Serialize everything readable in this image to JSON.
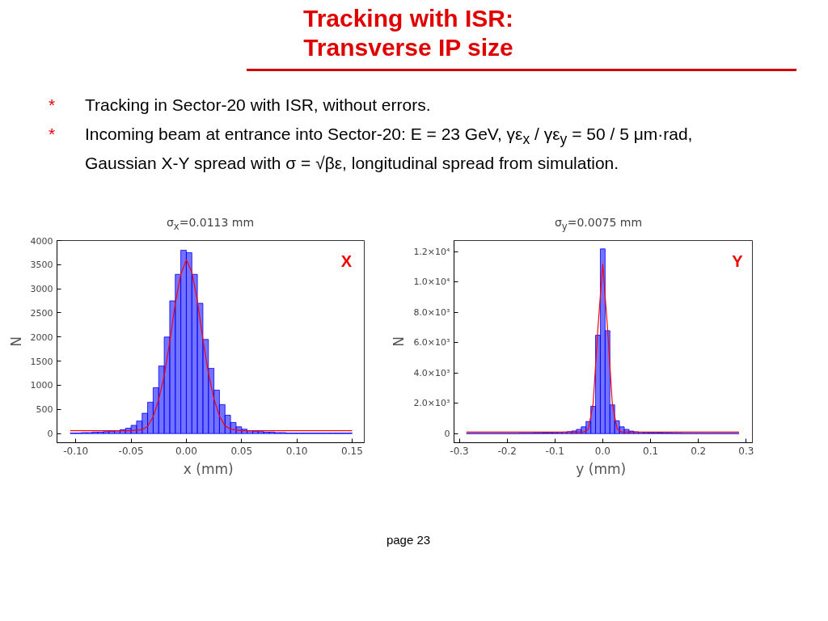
{
  "chart_data": [
    {
      "type": "histogram",
      "title": "σ$_{x}$=0.0113  mm",
      "xlabel": "x  (mm)",
      "ylabel": "N",
      "annotations": [
        "Tracking with ISR:\nTransverse IP size",
        "* Tracking in Sector-20 with ISR, without errors.",
        "* Incoming beam at entrance into Sector-20: E = 23 GeV, γε$_{x}$ / γε$_{y}$ = 50 / 5 μm·rad, Gaussian X-Y spread with σ = √βε, longitudinal spread from simulation.",
        "X",
        "page 23"
      ],
      "xlim": [
        -0.117,
        0.161
      ],
      "ylim": [
        -190,
        4000
      ],
      "xticks": [
        {
          "value": -0.1,
          "label": "-0.10"
        },
        {
          "value": -0.05,
          "label": "-0.05"
        },
        {
          "value": 0,
          "label": "0.00"
        },
        {
          "value": 0.05,
          "label": "0.05"
        },
        {
          "value": 0.1,
          "label": "0.10"
        },
        {
          "value": 0.15,
          "label": "0.15"
        }
      ],
      "yticks": [
        0,
        500,
        1000,
        1500,
        2000,
        2500,
        3000,
        3500,
        4000
      ],
      "series": [
        {
          "color": "#0000ff",
          "bins": [
            -0.105,
            -0.1,
            -0.095,
            -0.09,
            -0.085,
            -0.08,
            -0.075,
            -0.07,
            -0.065,
            -0.06,
            -0.055,
            -0.05,
            -0.045,
            -0.04,
            -0.035,
            -0.03,
            -0.025,
            -0.02,
            -0.015,
            -0.01,
            -0.005,
            0,
            0.005,
            0.01,
            0.015,
            0.02,
            0.025,
            0.03,
            0.035,
            0.04,
            0.045,
            0.05,
            0.055,
            0.06,
            0.065,
            0.07,
            0.075,
            0.08,
            0.085,
            0.09,
            0.095,
            0.1,
            0.105,
            0.11,
            0.115,
            0.12,
            0.125,
            0.13,
            0.135,
            0.14,
            0.145,
            0.15
          ],
          "values": [
            10,
            10,
            20,
            20,
            30,
            30,
            40,
            50,
            60,
            80,
            110,
            170,
            260,
            420,
            650,
            950,
            1400,
            2000,
            2750,
            3300,
            3800,
            3750,
            3300,
            2700,
            1950,
            1350,
            900,
            600,
            380,
            230,
            140,
            90,
            60,
            50,
            40,
            30,
            30,
            20,
            20,
            10,
            10,
            10,
            10,
            10,
            10,
            10,
            10,
            10,
            10,
            10,
            10
          ]
        },
        {
          "type": "line",
          "color": "#ff0000",
          "x": [
            -0.105,
            -0.05,
            -0.04,
            -0.035,
            -0.03,
            -0.025,
            -0.02,
            -0.015,
            -0.01,
            -0.005,
            0,
            0.005,
            0.01,
            0.015,
            0.02,
            0.025,
            0.03,
            0.035,
            0.04,
            0.05,
            0.15
          ],
          "values": [
            60,
            60,
            80,
            150,
            350,
            700,
            1200,
            1900,
            2700,
            3300,
            3600,
            3350,
            2750,
            1950,
            1250,
            720,
            360,
            160,
            90,
            60,
            60
          ]
        }
      ]
    },
    {
      "type": "histogram",
      "title": "σ$_{y}$=0.0075  mm",
      "xlabel": "y  (mm)",
      "ylabel": "N",
      "annotations": [
        "Y"
      ],
      "xlim": [
        -0.311,
        0.313
      ],
      "ylim": [
        -600,
        12750
      ],
      "xticks": [
        {
          "value": -0.3,
          "label": "-0.3"
        },
        {
          "value": -0.2,
          "label": "-0.2"
        },
        {
          "value": -0.1,
          "label": "-0.1"
        },
        {
          "value": 0,
          "label": "0.0"
        },
        {
          "value": 0.1,
          "label": "0.1"
        },
        {
          "value": 0.2,
          "label": "0.2"
        },
        {
          "value": 0.3,
          "label": "0.3"
        }
      ],
      "yticks": [
        0,
        {
          "value": 2000,
          "label": "2.0×10³"
        },
        {
          "value": 4000,
          "label": "4.0×10³"
        },
        {
          "value": 6000,
          "label": "6.0×10³"
        },
        {
          "value": 8000,
          "label": "8.0×10³"
        },
        {
          "value": 10000,
          "label": "1.0×10⁴"
        },
        {
          "value": 12000,
          "label": "1.2×10⁴"
        }
      ],
      "series": [
        {
          "color": "#0000ff",
          "bins": [
            -0.285,
            -0.275,
            -0.265,
            -0.255,
            -0.245,
            -0.235,
            -0.225,
            -0.215,
            -0.205,
            -0.195,
            -0.185,
            -0.175,
            -0.165,
            -0.155,
            -0.145,
            -0.135,
            -0.125,
            -0.115,
            -0.105,
            -0.095,
            -0.085,
            -0.075,
            -0.065,
            -0.055,
            -0.045,
            -0.035,
            -0.025,
            -0.015,
            -0.005,
            0.005,
            0.015,
            0.025,
            0.035,
            0.045,
            0.055,
            0.065,
            0.075,
            0.085,
            0.095,
            0.105,
            0.115,
            0.125,
            0.135,
            0.145,
            0.155,
            0.165,
            0.175,
            0.185,
            0.195,
            0.205,
            0.215,
            0.225,
            0.235,
            0.245,
            0.255,
            0.265,
            0.275,
            0.285
          ],
          "values": [
            10,
            10,
            10,
            10,
            10,
            10,
            10,
            10,
            10,
            10,
            10,
            20,
            20,
            20,
            30,
            30,
            40,
            50,
            60,
            80,
            100,
            130,
            180,
            280,
            450,
            800,
            1800,
            6500,
            12200,
            6800,
            1900,
            850,
            450,
            280,
            170,
            120,
            90,
            70,
            50,
            50,
            40,
            30,
            30,
            20,
            20,
            10,
            10,
            10,
            10,
            10,
            10,
            10,
            10,
            10,
            10,
            10,
            10
          ]
        },
        {
          "type": "line",
          "color": "#ff0000",
          "x": [
            -0.285,
            -0.04,
            -0.03,
            -0.02,
            -0.01,
            0,
            0.01,
            0.02,
            0.03,
            0.04,
            0.285
          ],
          "values": [
            100,
            100,
            300,
            2000,
            7000,
            11200,
            7000,
            2000,
            300,
            100,
            100
          ]
        }
      ]
    }
  ]
}
